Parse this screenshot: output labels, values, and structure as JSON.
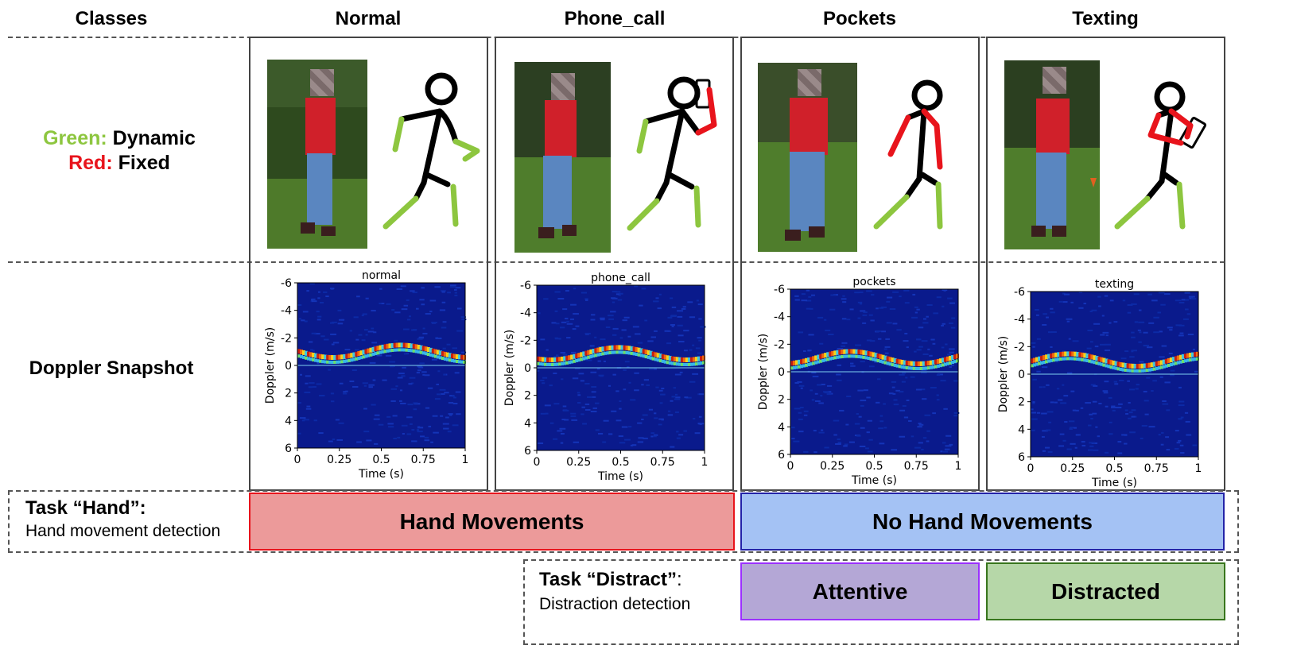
{
  "headers": {
    "classes": "Classes",
    "normal": "Normal",
    "phone_call": "Phone_call",
    "pockets": "Pockets",
    "texting": "Texting"
  },
  "legend": {
    "green_word": "Green:",
    "green_meaning": "Dynamic",
    "red_word": "Red:",
    "red_meaning": "Fixed",
    "green_color": "#8dc63f",
    "red_color": "#e8141c"
  },
  "row_labels": {
    "doppler": "Doppler Snapshot"
  },
  "plots": [
    {
      "title": "normal"
    },
    {
      "title": "phone_call"
    },
    {
      "title": "pockets"
    },
    {
      "title": "texting"
    }
  ],
  "axis": {
    "ylabel": "Doppler (m/s)",
    "xlabel": "Time (s)",
    "yticks": [
      "-6",
      "-4",
      "-2",
      "0",
      "2",
      "4",
      "6"
    ],
    "xticks": [
      "0",
      "0.25",
      "0.5",
      "0.75",
      "1"
    ]
  },
  "task_hand": {
    "title": "Task “Hand”:",
    "subtitle": "Hand movement detection",
    "yes_label": "Hand Movements",
    "no_label": "No Hand Movements",
    "yes_color": "#ec9a9a",
    "no_color": "#a4c2f4"
  },
  "task_distract": {
    "title": "Task “Distract”",
    "colon": ":",
    "subtitle": "Distraction detection",
    "attentive_label": "Attentive",
    "distracted_label": "Distracted",
    "attentive_color": "#b4a7d6",
    "distracted_color": "#b6d7a8"
  }
}
